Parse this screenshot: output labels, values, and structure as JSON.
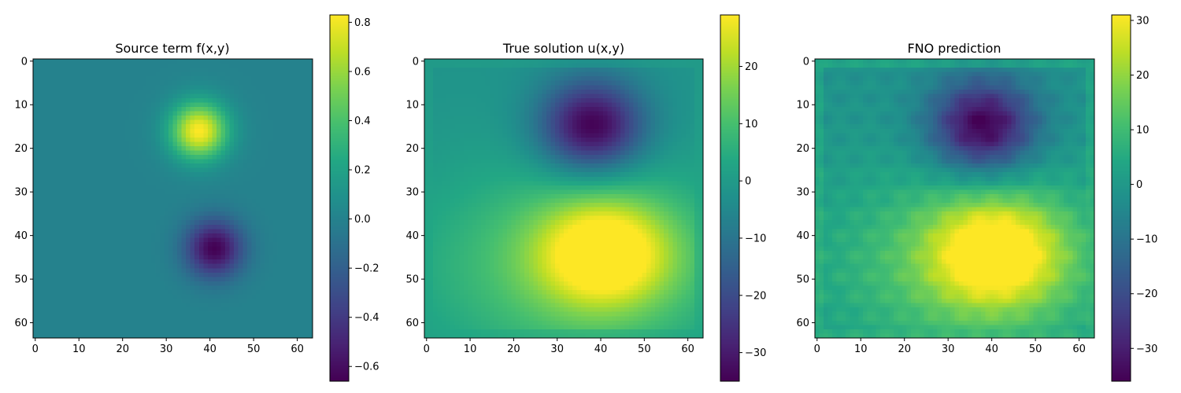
{
  "chart_data": [
    {
      "type": "heatmap",
      "title": "Source term f(x,y)",
      "grid_size": 64,
      "xlim": [
        -0.5,
        63.5
      ],
      "ylim": [
        -0.5,
        63.5
      ],
      "y_inverted": true,
      "xticks": [
        0,
        10,
        20,
        30,
        40,
        50,
        60
      ],
      "yticks": [
        0,
        10,
        20,
        30,
        40,
        50,
        60
      ],
      "colormap": "viridis",
      "vmin": -0.66,
      "vmax": 0.83,
      "colorbar_ticks": [
        0.8,
        0.6,
        0.4,
        0.2,
        0.0,
        -0.2,
        -0.4,
        -0.6
      ],
      "colorbar_labels": [
        "0.8",
        "0.6",
        "0.4",
        "0.2",
        "0.0",
        "−0.2",
        "−0.4",
        "−0.6"
      ],
      "features": [
        {
          "kind": "positive peak",
          "x": 37.5,
          "y": 16,
          "value": 0.83
        },
        {
          "kind": "negative peak",
          "x": 41,
          "y": 43,
          "value": -0.66
        }
      ]
    },
    {
      "type": "heatmap",
      "title": "True solution u(x,y)",
      "grid_size": 64,
      "xlim": [
        -0.5,
        63.5
      ],
      "ylim": [
        -0.5,
        63.5
      ],
      "y_inverted": true,
      "xticks": [
        0,
        10,
        20,
        30,
        40,
        50,
        60
      ],
      "yticks": [
        0,
        10,
        20,
        30,
        40,
        50,
        60
      ],
      "colormap": "viridis",
      "vmin": -35,
      "vmax": 29,
      "colorbar_ticks": [
        20,
        10,
        0,
        -10,
        -20,
        -30
      ],
      "colorbar_labels": [
        "20",
        "10",
        "0",
        "−10",
        "−20",
        "−30"
      ],
      "features": [
        {
          "kind": "negative peak",
          "x": 38,
          "y": 15,
          "value": -35
        },
        {
          "kind": "positive peak",
          "x": 41,
          "y": 43,
          "value": 29
        }
      ]
    },
    {
      "type": "heatmap",
      "title": "FNO prediction",
      "grid_size": 64,
      "xlim": [
        -0.5,
        63.5
      ],
      "ylim": [
        -0.5,
        63.5
      ],
      "y_inverted": true,
      "xticks": [
        0,
        10,
        20,
        30,
        40,
        50,
        60
      ],
      "yticks": [
        0,
        10,
        20,
        30,
        40,
        50,
        60
      ],
      "colormap": "viridis",
      "vmin": -36,
      "vmax": 31,
      "colorbar_ticks": [
        30,
        20,
        10,
        0,
        -10,
        -20,
        -30
      ],
      "colorbar_labels": [
        "30",
        "20",
        "10",
        "0",
        "−10",
        "−20",
        "−30"
      ],
      "features": [
        {
          "kind": "negative peak",
          "x": 38,
          "y": 15,
          "value": -36
        },
        {
          "kind": "positive peak",
          "x": 41,
          "y": 43,
          "value": 31
        }
      ]
    }
  ]
}
